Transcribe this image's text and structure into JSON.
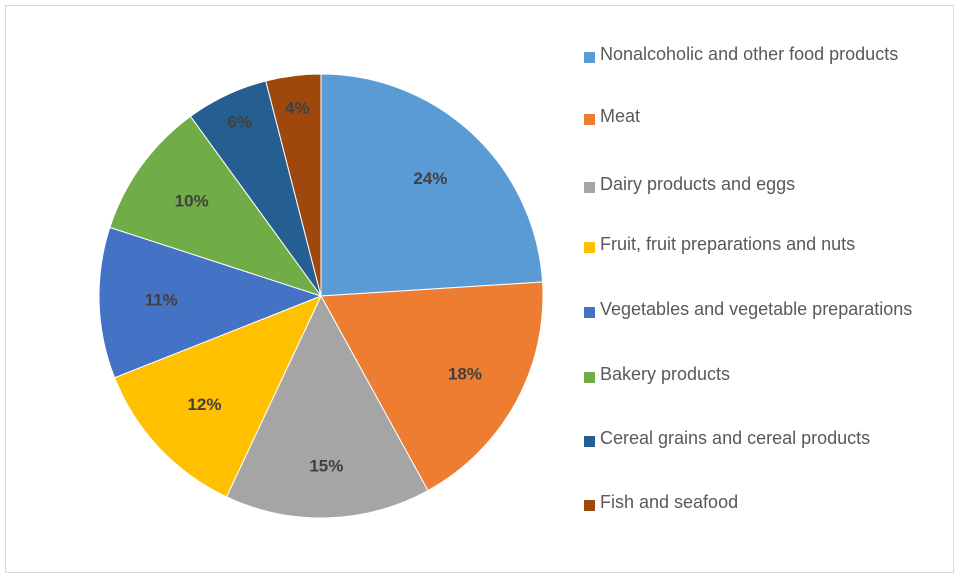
{
  "chart_data": {
    "type": "pie",
    "title": "",
    "categories": [
      "Nonalcoholic and other food products",
      "Meat",
      "Dairy products and eggs",
      "Fruit, fruit preparations and nuts",
      "Vegetables and vegetable preparations",
      "Bakery products",
      "Cereal grains and cereal products",
      "Fish and seafood"
    ],
    "values": [
      24,
      18,
      15,
      12,
      11,
      10,
      6,
      4
    ],
    "labels": [
      "24%",
      "18%",
      "15%",
      "12%",
      "11%",
      "10%",
      "6%",
      "4%"
    ],
    "colors": [
      "#5b9bd5",
      "#ed7d31",
      "#a5a5a5",
      "#ffc000",
      "#4472c4",
      "#70ad47",
      "#255e91",
      "#9e480e"
    ],
    "legend_position": "right"
  }
}
